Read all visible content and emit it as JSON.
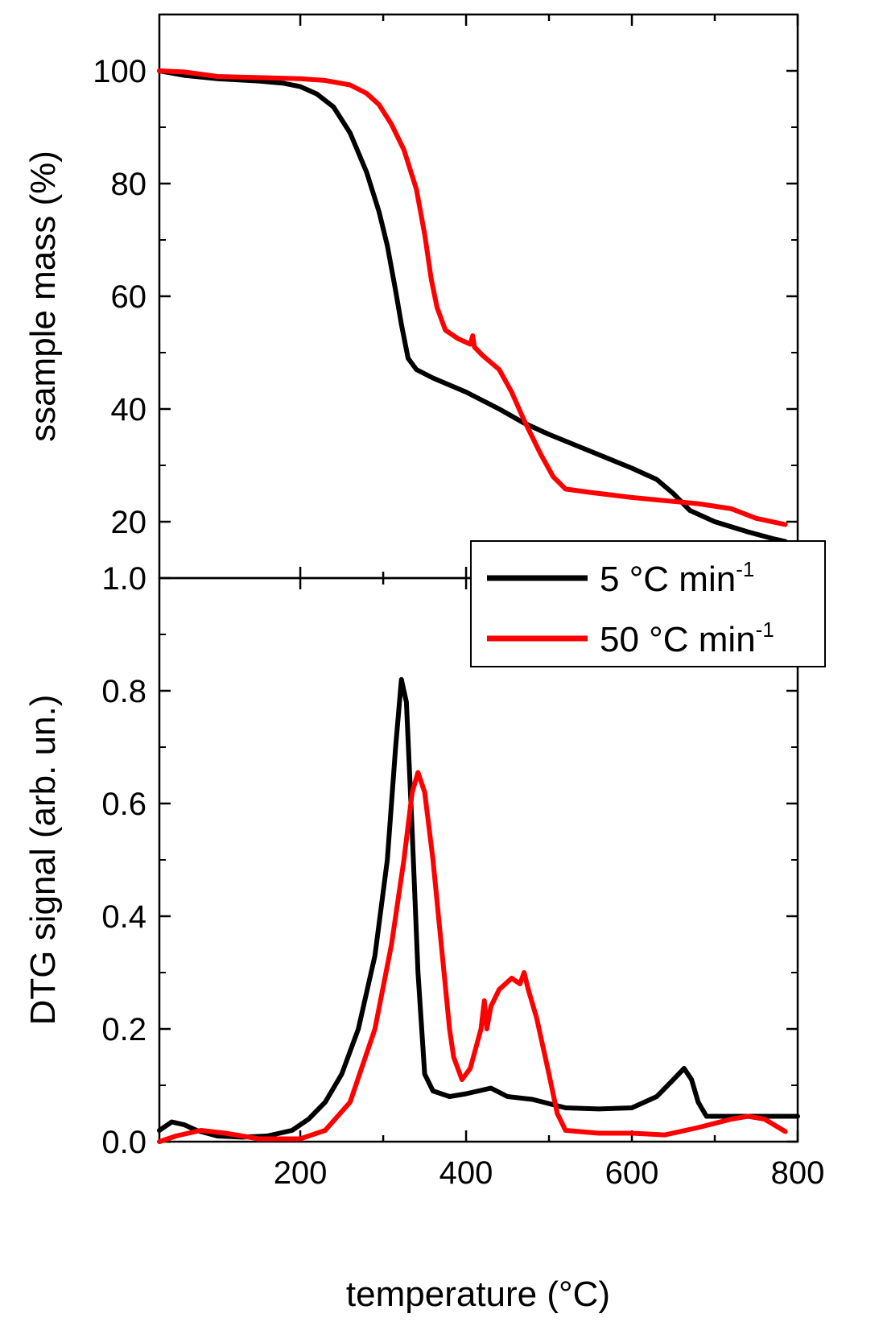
{
  "chart_data": [
    {
      "panel": "top",
      "type": "line",
      "ylabel": "ssample mass (%)",
      "xlim": [
        30,
        800
      ],
      "ylim": [
        10,
        110
      ],
      "yticks": [
        20,
        40,
        60,
        80,
        100
      ],
      "ytick_labels": [
        "20",
        "40",
        "60",
        "80",
        "100"
      ],
      "series": [
        {
          "name": "5 °C min-1",
          "color": "#000000",
          "points": [
            [
              30,
              100
            ],
            [
              60,
              99.2
            ],
            [
              100,
              98.6
            ],
            [
              150,
              98.2
            ],
            [
              180,
              97.8
            ],
            [
              200,
              97.2
            ],
            [
              220,
              95.9
            ],
            [
              240,
              93.6
            ],
            [
              260,
              89
            ],
            [
              280,
              82
            ],
            [
              295,
              75
            ],
            [
              305,
              69
            ],
            [
              315,
              61
            ],
            [
              322,
              55
            ],
            [
              330,
              49
            ],
            [
              340,
              47
            ],
            [
              360,
              45.5
            ],
            [
              400,
              43
            ],
            [
              440,
              40
            ],
            [
              470,
              37.5
            ],
            [
              500,
              35.5
            ],
            [
              550,
              32.5
            ],
            [
              600,
              29.5
            ],
            [
              630,
              27.5
            ],
            [
              650,
              25
            ],
            [
              670,
              22
            ],
            [
              700,
              20
            ],
            [
              740,
              18.2
            ],
            [
              770,
              17
            ],
            [
              785,
              16.5
            ]
          ]
        },
        {
          "name": "50 °C min-1",
          "color": "#ff0000",
          "points": [
            [
              30,
              100
            ],
            [
              60,
              99.8
            ],
            [
              100,
              99
            ],
            [
              150,
              98.8
            ],
            [
              200,
              98.6
            ],
            [
              230,
              98.3
            ],
            [
              260,
              97.5
            ],
            [
              280,
              96
            ],
            [
              295,
              94
            ],
            [
              310,
              90.5
            ],
            [
              325,
              86
            ],
            [
              340,
              79
            ],
            [
              350,
              71
            ],
            [
              358,
              63
            ],
            [
              365,
              58
            ],
            [
              375,
              54
            ],
            [
              390,
              52.5
            ],
            [
              405,
              51.5
            ],
            [
              408,
              53
            ],
            [
              410,
              51
            ],
            [
              420,
              49.5
            ],
            [
              440,
              47
            ],
            [
              455,
              43
            ],
            [
              470,
              38
            ],
            [
              490,
              32
            ],
            [
              505,
              28
            ],
            [
              520,
              25.8
            ],
            [
              550,
              25.2
            ],
            [
              600,
              24.3
            ],
            [
              650,
              23.6
            ],
            [
              680,
              23.2
            ],
            [
              720,
              22.3
            ],
            [
              750,
              20.6
            ],
            [
              785,
              19.5
            ]
          ]
        }
      ]
    },
    {
      "panel": "bottom",
      "type": "line",
      "xlabel": "temperature (°C)",
      "ylabel": "DTG signal (arb. un.)",
      "xlim": [
        30,
        800
      ],
      "ylim": [
        0,
        1.0
      ],
      "xticks": [
        200,
        400,
        600,
        800
      ],
      "xtick_labels": [
        "200",
        "400",
        "600",
        "800"
      ],
      "yticks": [
        0.0,
        0.2,
        0.4,
        0.6,
        0.8,
        1.0
      ],
      "ytick_labels": [
        "0.0",
        "0.2",
        "0.4",
        "0.6",
        "0.8",
        "1.0"
      ],
      "series": [
        {
          "name": "5 °C min-1",
          "color": "#000000",
          "points": [
            [
              30,
              0.02
            ],
            [
              45,
              0.035
            ],
            [
              60,
              0.03
            ],
            [
              75,
              0.02
            ],
            [
              100,
              0.01
            ],
            [
              130,
              0.008
            ],
            [
              160,
              0.01
            ],
            [
              190,
              0.02
            ],
            [
              210,
              0.04
            ],
            [
              230,
              0.07
            ],
            [
              250,
              0.12
            ],
            [
              270,
              0.2
            ],
            [
              290,
              0.33
            ],
            [
              305,
              0.5
            ],
            [
              315,
              0.7
            ],
            [
              322,
              0.82
            ],
            [
              328,
              0.78
            ],
            [
              335,
              0.55
            ],
            [
              342,
              0.3
            ],
            [
              350,
              0.12
            ],
            [
              360,
              0.09
            ],
            [
              380,
              0.08
            ],
            [
              400,
              0.085
            ],
            [
              430,
              0.095
            ],
            [
              450,
              0.08
            ],
            [
              480,
              0.075
            ],
            [
              520,
              0.06
            ],
            [
              560,
              0.058
            ],
            [
              600,
              0.06
            ],
            [
              630,
              0.08
            ],
            [
              650,
              0.11
            ],
            [
              663,
              0.13
            ],
            [
              672,
              0.11
            ],
            [
              680,
              0.07
            ],
            [
              690,
              0.045
            ],
            [
              720,
              0.045
            ],
            [
              760,
              0.045
            ],
            [
              800,
              0.045
            ]
          ]
        },
        {
          "name": "50 °C min-1",
          "color": "#ff0000",
          "points": [
            [
              30,
              0
            ],
            [
              50,
              0.01
            ],
            [
              80,
              0.02
            ],
            [
              110,
              0.015
            ],
            [
              150,
              0.005
            ],
            [
              200,
              0.005
            ],
            [
              230,
              0.02
            ],
            [
              260,
              0.07
            ],
            [
              290,
              0.2
            ],
            [
              310,
              0.35
            ],
            [
              325,
              0.5
            ],
            [
              335,
              0.62
            ],
            [
              342,
              0.655
            ],
            [
              350,
              0.62
            ],
            [
              360,
              0.5
            ],
            [
              370,
              0.35
            ],
            [
              380,
              0.2
            ],
            [
              385,
              0.15
            ],
            [
              395,
              0.11
            ],
            [
              405,
              0.13
            ],
            [
              418,
              0.2
            ],
            [
              422,
              0.25
            ],
            [
              425,
              0.2
            ],
            [
              430,
              0.24
            ],
            [
              440,
              0.27
            ],
            [
              455,
              0.29
            ],
            [
              465,
              0.28
            ],
            [
              470,
              0.3
            ],
            [
              475,
              0.27
            ],
            [
              485,
              0.22
            ],
            [
              500,
              0.12
            ],
            [
              510,
              0.05
            ],
            [
              520,
              0.02
            ],
            [
              560,
              0.015
            ],
            [
              600,
              0.015
            ],
            [
              640,
              0.012
            ],
            [
              680,
              0.025
            ],
            [
              720,
              0.04
            ],
            [
              740,
              0.045
            ],
            [
              760,
              0.04
            ],
            [
              785,
              0.018
            ]
          ]
        }
      ]
    }
  ],
  "legend": {
    "items": [
      {
        "label": "5 °C min",
        "superscript": "-1",
        "color": "#000000"
      },
      {
        "label": "50 °C min",
        "superscript": "-1",
        "color": "#ff0000"
      }
    ]
  }
}
